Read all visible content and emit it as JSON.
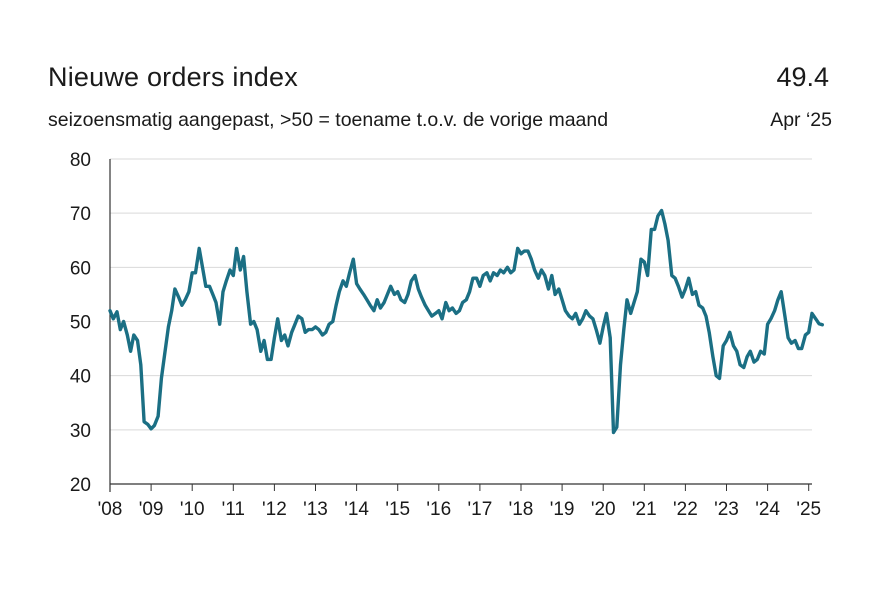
{
  "chart_data": {
    "type": "line",
    "title": "Nieuwe orders index",
    "subtitle": "seizoensmatig aangepast, >50 = toename t.o.v. de vorige maand",
    "latest": {
      "value": "49.4",
      "label": "Apr ‘25"
    },
    "xlabel": "",
    "ylabel": "",
    "ylim": [
      20,
      80
    ],
    "yticks": [
      "80",
      "70",
      "60",
      "50",
      "40",
      "30",
      "20"
    ],
    "xticks": [
      "'08",
      "'09",
      "'10",
      "'11",
      "'12",
      "'13",
      "'14",
      "'15",
      "'16",
      "'17",
      "'18",
      "'19",
      "'20",
      "'21",
      "'22",
      "'23",
      "'24",
      "'25"
    ],
    "x_start": 2008.0,
    "x_end": 2025.333,
    "line_color": "#1b6f84",
    "series": [
      {
        "name": "Nieuwe orders index",
        "points": [
          [
            2008.0,
            52.0
          ],
          [
            2008.08,
            50.5
          ],
          [
            2008.17,
            51.8
          ],
          [
            2008.25,
            48.5
          ],
          [
            2008.33,
            50.0
          ],
          [
            2008.42,
            47.5
          ],
          [
            2008.5,
            44.5
          ],
          [
            2008.58,
            47.5
          ],
          [
            2008.67,
            46.5
          ],
          [
            2008.75,
            42.0
          ],
          [
            2008.83,
            31.5
          ],
          [
            2008.92,
            31.0
          ],
          [
            2009.0,
            30.2
          ],
          [
            2009.08,
            30.8
          ],
          [
            2009.17,
            32.5
          ],
          [
            2009.25,
            39.5
          ],
          [
            2009.33,
            44.0
          ],
          [
            2009.42,
            49.0
          ],
          [
            2009.5,
            52.0
          ],
          [
            2009.58,
            56.0
          ],
          [
            2009.67,
            54.5
          ],
          [
            2009.75,
            53.0
          ],
          [
            2009.83,
            54.0
          ],
          [
            2009.92,
            55.5
          ],
          [
            2010.0,
            59.0
          ],
          [
            2010.08,
            59.0
          ],
          [
            2010.17,
            63.5
          ],
          [
            2010.25,
            60.0
          ],
          [
            2010.33,
            56.5
          ],
          [
            2010.42,
            56.5
          ],
          [
            2010.5,
            55.0
          ],
          [
            2010.58,
            53.5
          ],
          [
            2010.67,
            49.5
          ],
          [
            2010.75,
            55.5
          ],
          [
            2010.83,
            57.5
          ],
          [
            2010.92,
            59.5
          ],
          [
            2011.0,
            58.5
          ],
          [
            2011.08,
            63.5
          ],
          [
            2011.17,
            59.5
          ],
          [
            2011.25,
            62.0
          ],
          [
            2011.33,
            55.5
          ],
          [
            2011.42,
            49.5
          ],
          [
            2011.5,
            50.0
          ],
          [
            2011.58,
            48.5
          ],
          [
            2011.67,
            44.5
          ],
          [
            2011.75,
            46.5
          ],
          [
            2011.83,
            43.0
          ],
          [
            2011.92,
            43.0
          ],
          [
            2012.0,
            47.0
          ],
          [
            2012.08,
            50.5
          ],
          [
            2012.17,
            46.5
          ],
          [
            2012.25,
            47.5
          ],
          [
            2012.33,
            45.5
          ],
          [
            2012.42,
            48.0
          ],
          [
            2012.5,
            49.5
          ],
          [
            2012.58,
            51.0
          ],
          [
            2012.67,
            50.5
          ],
          [
            2012.75,
            48.0
          ],
          [
            2012.83,
            48.5
          ],
          [
            2012.92,
            48.5
          ],
          [
            2013.0,
            49.0
          ],
          [
            2013.08,
            48.5
          ],
          [
            2013.17,
            47.5
          ],
          [
            2013.25,
            48.0
          ],
          [
            2013.33,
            49.5
          ],
          [
            2013.42,
            50.0
          ],
          [
            2013.5,
            53.0
          ],
          [
            2013.58,
            55.5
          ],
          [
            2013.67,
            57.5
          ],
          [
            2013.75,
            56.5
          ],
          [
            2013.83,
            59.0
          ],
          [
            2013.92,
            61.5
          ],
          [
            2014.0,
            57.0
          ],
          [
            2014.08,
            56.0
          ],
          [
            2014.17,
            55.0
          ],
          [
            2014.25,
            54.0
          ],
          [
            2014.33,
            53.0
          ],
          [
            2014.42,
            52.0
          ],
          [
            2014.5,
            54.0
          ],
          [
            2014.58,
            52.5
          ],
          [
            2014.67,
            53.5
          ],
          [
            2014.75,
            55.0
          ],
          [
            2014.83,
            56.5
          ],
          [
            2014.92,
            55.0
          ],
          [
            2015.0,
            55.5
          ],
          [
            2015.08,
            54.0
          ],
          [
            2015.17,
            53.5
          ],
          [
            2015.25,
            55.0
          ],
          [
            2015.33,
            57.5
          ],
          [
            2015.42,
            58.5
          ],
          [
            2015.5,
            56.0
          ],
          [
            2015.58,
            54.5
          ],
          [
            2015.67,
            53.0
          ],
          [
            2015.75,
            52.0
          ],
          [
            2015.83,
            51.0
          ],
          [
            2015.92,
            51.5
          ],
          [
            2016.0,
            52.0
          ],
          [
            2016.08,
            50.5
          ],
          [
            2016.17,
            53.5
          ],
          [
            2016.25,
            52.0
          ],
          [
            2016.33,
            52.5
          ],
          [
            2016.42,
            51.5
          ],
          [
            2016.5,
            52.0
          ],
          [
            2016.58,
            53.5
          ],
          [
            2016.67,
            54.0
          ],
          [
            2016.75,
            55.5
          ],
          [
            2016.83,
            58.0
          ],
          [
            2016.92,
            58.0
          ],
          [
            2017.0,
            56.5
          ],
          [
            2017.08,
            58.5
          ],
          [
            2017.17,
            59.0
          ],
          [
            2017.25,
            57.5
          ],
          [
            2017.33,
            59.0
          ],
          [
            2017.42,
            58.5
          ],
          [
            2017.5,
            59.5
          ],
          [
            2017.58,
            59.0
          ],
          [
            2017.67,
            60.0
          ],
          [
            2017.75,
            59.0
          ],
          [
            2017.83,
            59.5
          ],
          [
            2017.92,
            63.5
          ],
          [
            2018.0,
            62.5
          ],
          [
            2018.08,
            63.0
          ],
          [
            2018.17,
            63.0
          ],
          [
            2018.25,
            61.5
          ],
          [
            2018.33,
            59.5
          ],
          [
            2018.42,
            58.0
          ],
          [
            2018.5,
            59.5
          ],
          [
            2018.58,
            58.5
          ],
          [
            2018.67,
            56.0
          ],
          [
            2018.75,
            58.5
          ],
          [
            2018.83,
            55.0
          ],
          [
            2018.92,
            56.0
          ],
          [
            2019.0,
            54.0
          ],
          [
            2019.08,
            52.0
          ],
          [
            2019.17,
            51.0
          ],
          [
            2019.25,
            50.5
          ],
          [
            2019.33,
            51.5
          ],
          [
            2019.42,
            49.5
          ],
          [
            2019.5,
            50.5
          ],
          [
            2019.58,
            52.0
          ],
          [
            2019.67,
            51.0
          ],
          [
            2019.75,
            50.5
          ],
          [
            2019.83,
            48.5
          ],
          [
            2019.92,
            46.0
          ],
          [
            2020.0,
            49.0
          ],
          [
            2020.08,
            51.5
          ],
          [
            2020.17,
            47.0
          ],
          [
            2020.25,
            29.5
          ],
          [
            2020.33,
            30.5
          ],
          [
            2020.42,
            42.0
          ],
          [
            2020.5,
            48.5
          ],
          [
            2020.58,
            54.0
          ],
          [
            2020.67,
            51.5
          ],
          [
            2020.75,
            53.5
          ],
          [
            2020.83,
            55.5
          ],
          [
            2020.92,
            61.5
          ],
          [
            2021.0,
            61.0
          ],
          [
            2021.08,
            58.5
          ],
          [
            2021.17,
            67.0
          ],
          [
            2021.25,
            67.0
          ],
          [
            2021.33,
            69.5
          ],
          [
            2021.42,
            70.5
          ],
          [
            2021.5,
            68.0
          ],
          [
            2021.58,
            65.0
          ],
          [
            2021.67,
            58.5
          ],
          [
            2021.75,
            58.0
          ],
          [
            2021.83,
            56.5
          ],
          [
            2021.92,
            54.5
          ],
          [
            2022.0,
            56.0
          ],
          [
            2022.08,
            58.0
          ],
          [
            2022.17,
            55.0
          ],
          [
            2022.25,
            55.5
          ],
          [
            2022.33,
            53.0
          ],
          [
            2022.42,
            52.5
          ],
          [
            2022.5,
            51.0
          ],
          [
            2022.58,
            48.0
          ],
          [
            2022.67,
            43.5
          ],
          [
            2022.75,
            40.0
          ],
          [
            2022.83,
            39.5
          ],
          [
            2022.92,
            45.5
          ],
          [
            2023.0,
            46.5
          ],
          [
            2023.08,
            48.0
          ],
          [
            2023.17,
            45.5
          ],
          [
            2023.25,
            44.5
          ],
          [
            2023.33,
            42.0
          ],
          [
            2023.42,
            41.5
          ],
          [
            2023.5,
            43.5
          ],
          [
            2023.58,
            44.5
          ],
          [
            2023.67,
            42.5
          ],
          [
            2023.75,
            43.0
          ],
          [
            2023.83,
            44.5
          ],
          [
            2023.92,
            44.0
          ],
          [
            2024.0,
            49.5
          ],
          [
            2024.08,
            50.5
          ],
          [
            2024.17,
            52.0
          ],
          [
            2024.25,
            54.0
          ],
          [
            2024.33,
            55.5
          ],
          [
            2024.42,
            51.0
          ],
          [
            2024.5,
            47.0
          ],
          [
            2024.58,
            46.0
          ],
          [
            2024.67,
            46.5
          ],
          [
            2024.75,
            45.0
          ],
          [
            2024.83,
            45.0
          ],
          [
            2024.92,
            47.5
          ],
          [
            2025.0,
            48.0
          ],
          [
            2025.08,
            51.5
          ],
          [
            2025.17,
            50.5
          ],
          [
            2025.25,
            49.6
          ],
          [
            2025.33,
            49.4
          ]
        ]
      }
    ]
  }
}
